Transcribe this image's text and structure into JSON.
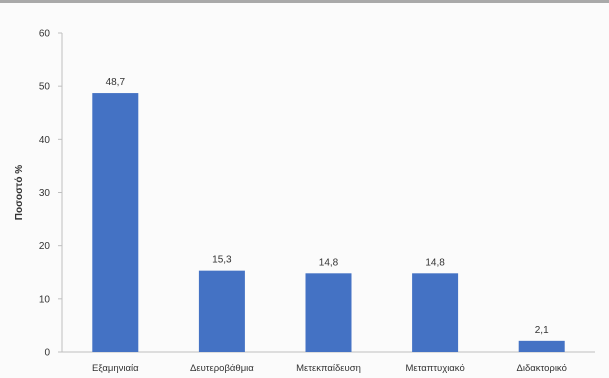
{
  "chart_data": {
    "type": "bar",
    "title": "",
    "xlabel": "",
    "ylabel": "Ποσοστό %",
    "categories": [
      "Εξαμηνιαία",
      "Δευτεροβάθμια",
      "Μετεκπαίδευση",
      "Μεταπτυχιακό",
      "Διδακτορικό"
    ],
    "values": [
      48.7,
      15.3,
      14.8,
      14.8,
      2.1
    ],
    "value_labels": [
      "48,7",
      "15,3",
      "14,8",
      "14,8",
      "2,1"
    ],
    "yticks": [
      "0",
      "10",
      "20",
      "30",
      "40",
      "50",
      "60"
    ],
    "ylim": [
      0,
      60
    ],
    "grid": false,
    "legend": "none",
    "bar_color": "#4472c4"
  }
}
